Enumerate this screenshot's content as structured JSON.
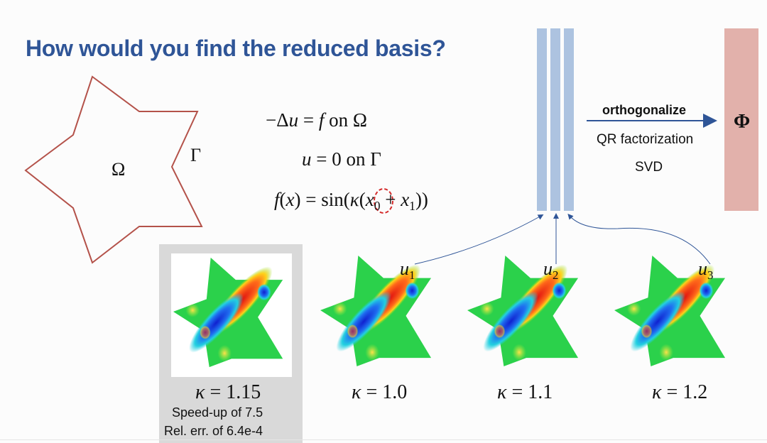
{
  "title": "How would you find the reduced basis?",
  "domain_shape": {
    "omega": "Ω",
    "gamma": "Γ"
  },
  "equations": {
    "pde": {
      "left": "−Δ",
      "u": "u",
      "eq": " = ",
      "f": "f",
      "on": " on ",
      "set": "Ω"
    },
    "bc": {
      "u": "u",
      "eq": " = 0",
      "on": " on ",
      "set": "Γ"
    },
    "source": {
      "f": "f",
      "x_open": "(",
      "x": "x",
      "x_close": ")",
      "eq": " = sin(",
      "paren": "(",
      "kappa": "κ",
      "paren2": "(",
      "x0": "x",
      "x0_sub": "0",
      "plus": " + ",
      "x1": "x",
      "x1_sub": "1",
      "close": "))"
    }
  },
  "orthogonalize": {
    "label": "orthogonalize",
    "methods": [
      "QR factorization",
      "SVD"
    ],
    "result": "Φ"
  },
  "snapshots": [
    {
      "kappa_symbol": "κ",
      "kappa_value": " = 1.0",
      "u_label": "u",
      "u_sub": "1"
    },
    {
      "kappa_symbol": "κ",
      "kappa_value": " = 1.1",
      "u_label": "u",
      "u_sub": "2"
    },
    {
      "kappa_symbol": "κ",
      "kappa_value": " = 1.2",
      "u_label": "u",
      "u_sub": "3"
    }
  ],
  "reduced_result": {
    "kappa_symbol": "κ",
    "kappa_value": " = 1.15",
    "speedup": "Speed-up of 7.5",
    "rel_err": "Rel. err. of  6.4e-4"
  },
  "colors": {
    "title": "#2f5597",
    "basis_columns": "#adc3e0",
    "phi_column": "#e2b1ab",
    "domain_outline": "#b4524a",
    "arrow": "#2f5597",
    "field_red": "#e8261a",
    "field_blue": "#1f3fd8",
    "field_green": "#22cc44"
  }
}
